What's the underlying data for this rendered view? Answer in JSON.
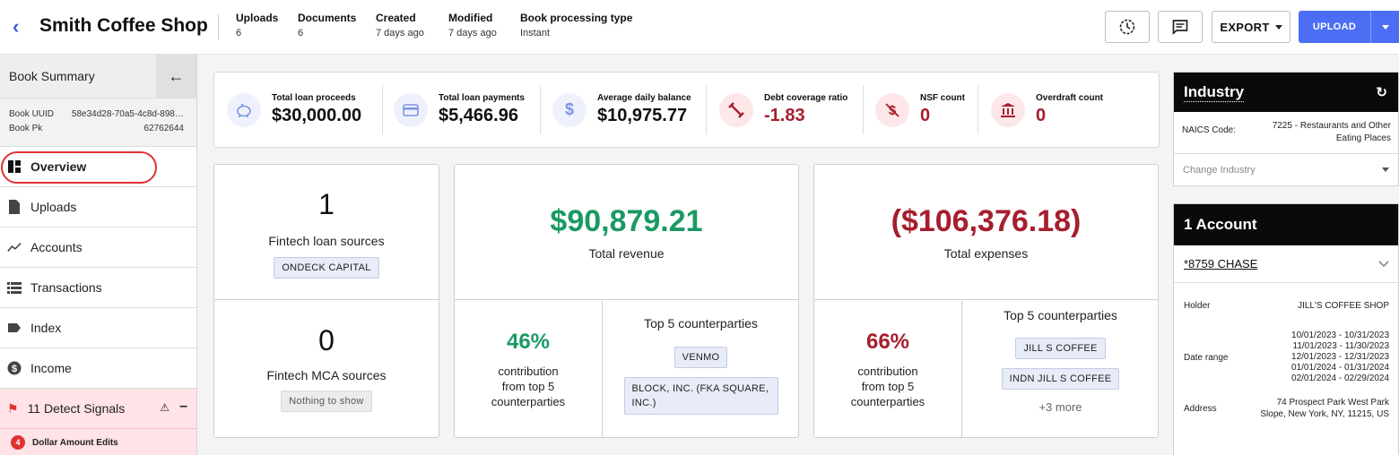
{
  "header": {
    "title": "Smith Coffee Shop",
    "meta": [
      {
        "label": "Uploads",
        "value": "6"
      },
      {
        "label": "Documents",
        "value": "6"
      },
      {
        "label": "Created",
        "value": "7 days ago"
      },
      {
        "label": "Modified",
        "value": "7 days ago"
      },
      {
        "label": "Book processing type",
        "value": "Instant"
      }
    ],
    "export_label": "EXPORT",
    "upload_label": "UPLOAD"
  },
  "sidebar": {
    "title": "Book Summary",
    "book_uuid_label": "Book UUID",
    "book_uuid": "58e34d28-70a5-4c8d-898…",
    "book_pk_label": "Book Pk",
    "book_pk": "62762644",
    "items": [
      {
        "label": "Overview"
      },
      {
        "label": "Uploads"
      },
      {
        "label": "Accounts"
      },
      {
        "label": "Transactions"
      },
      {
        "label": "Index"
      },
      {
        "label": "Income"
      }
    ],
    "signals_label": "11 Detect Signals",
    "signal_sub_count": "4",
    "signal_sub_label": "Dollar Amount Edits"
  },
  "stats": [
    {
      "label": "Total loan proceeds",
      "value": "$30,000.00"
    },
    {
      "label": "Total loan payments",
      "value": "$5,466.96"
    },
    {
      "label": "Average daily balance",
      "value": "$10,975.77"
    },
    {
      "label": "Debt coverage ratio",
      "value": "-1.83"
    },
    {
      "label": "NSF count",
      "value": "0"
    },
    {
      "label": "Overdraft count",
      "value": "0"
    }
  ],
  "fintech": {
    "loan_count": "1",
    "loan_label": "Fintech loan sources",
    "loan_chip": "ONDECK CAPITAL",
    "mca_count": "0",
    "mca_label": "Fintech MCA sources",
    "mca_chip": "Nothing to show"
  },
  "revenue": {
    "total": "$90,879.21",
    "label": "Total revenue",
    "pct": "46%",
    "pct_label_1": "contribution",
    "pct_label_2": "from top 5",
    "pct_label_3": "counterparties",
    "cp_title": "Top 5 counterparties",
    "cp_1": "VENMO",
    "cp_2": "BLOCK, INC. (FKA SQUARE, INC.)"
  },
  "expenses": {
    "total": "($106,376.18)",
    "label": "Total expenses",
    "pct": "66%",
    "pct_label_1": "contribution",
    "pct_label_2": "from top 5",
    "pct_label_3": "counterparties",
    "cp_title": "Top 5 counterparties",
    "cp_1": "JILL S COFFEE",
    "cp_2": "INDN JILL S COFFEE",
    "more": "+3 more"
  },
  "industry": {
    "title": "Industry",
    "naics_label": "NAICS Code:",
    "naics_value": "7225 - Restaurants and Other Eating Places",
    "change_placeholder": "Change Industry"
  },
  "account": {
    "title": "1 Account",
    "name": "*8759 CHASE",
    "holder_label": "Holder",
    "holder": "JILL'S COFFEE SHOP",
    "date_label": "Date range",
    "dates": [
      "10/01/2023 - 10/31/2023",
      "11/01/2023 - 11/30/2023",
      "12/01/2023 - 12/31/2023",
      "01/01/2024 - 01/31/2024",
      "02/01/2024 - 02/29/2024"
    ],
    "address_label": "Address",
    "address_1": "74 Prospect Park West Park",
    "address_2": "Slope, New York, NY, 11215, US"
  },
  "colors": {
    "accent": "#4c6ef5",
    "positive": "#1a9a62",
    "negative": "#a61e2e",
    "highlight": "#e03131"
  }
}
